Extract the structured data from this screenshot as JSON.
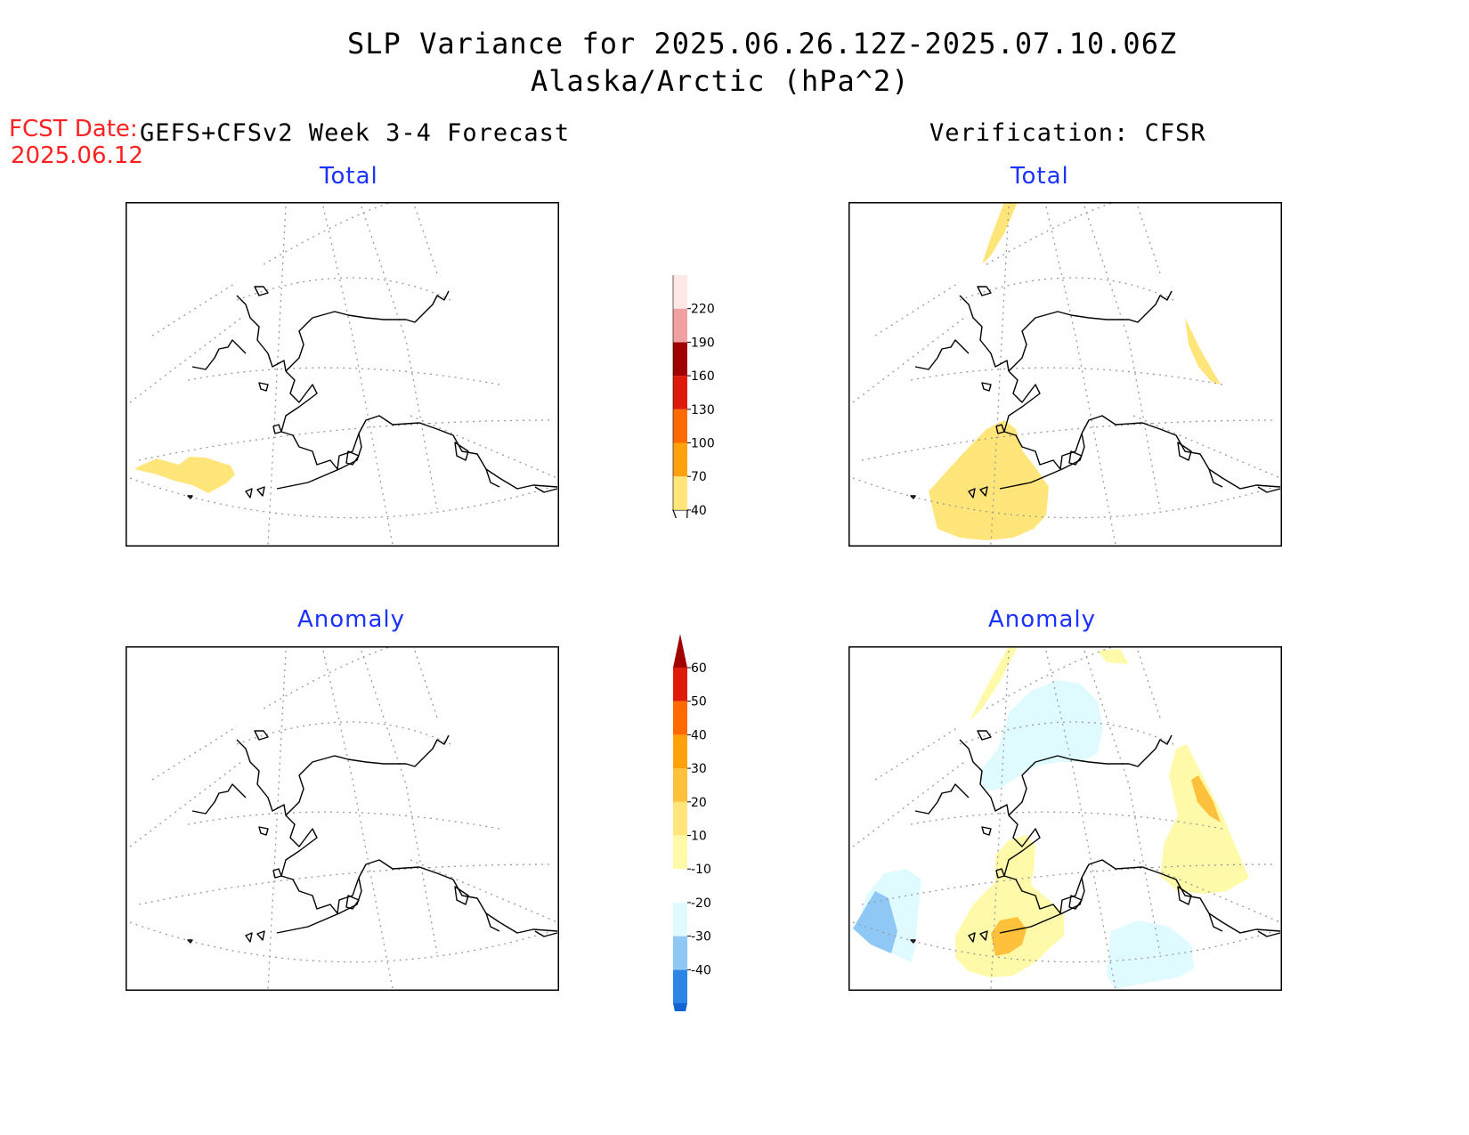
{
  "title": "SLP Variance for 2025.06.26.12Z-2025.07.10.06Z",
  "subtitle": "Alaska/Arctic (hPa^2)",
  "fcst": {
    "label": "FCST Date:",
    "date": "2025.06.12"
  },
  "left_header": "GEFS+CFSv2 Week 3-4 Forecast",
  "right_header": "Verification: CFSR",
  "panels": {
    "fcst_total": {
      "label": "Total"
    },
    "verif_total": {
      "label": "Total"
    },
    "fcst_anom": {
      "label": "Anomaly"
    },
    "verif_anom": {
      "label": "Anomaly"
    }
  },
  "colorbars": {
    "total": {
      "labels": [
        "40",
        "70",
        "100",
        "130",
        "160",
        "190",
        "220"
      ],
      "colors": [
        "#ffe57a",
        "#ffa10a",
        "#ff6a00",
        "#e01a0a",
        "#a00000",
        "#f0a0a0",
        "#fde8e8"
      ]
    },
    "anomaly": {
      "labels": [
        "-40",
        "-30",
        "-20",
        "-10",
        "10",
        "20",
        "30",
        "40",
        "50",
        "60"
      ],
      "colors": [
        "#1463d2",
        "#2d86e6",
        "#8fc8f5",
        "#e0fbff",
        "#ffffff",
        "#fffaaa",
        "#ffe57a",
        "#ffc03c",
        "#ffa10a",
        "#ff6a00",
        "#e01a0a",
        "#a00000"
      ]
    }
  },
  "colors": {
    "panel_label": "#1c32ff",
    "fcst_date": "#ff2020"
  }
}
